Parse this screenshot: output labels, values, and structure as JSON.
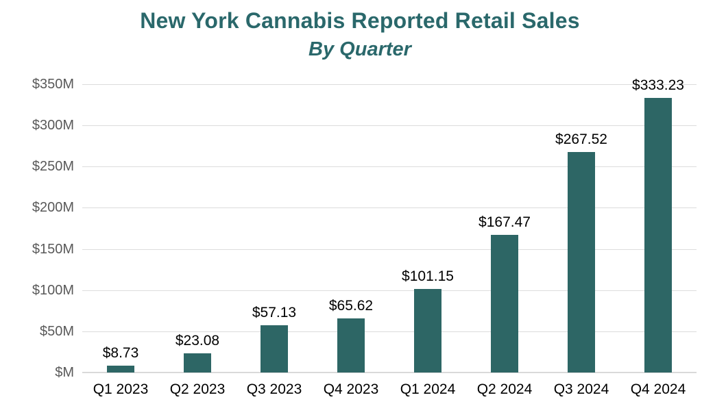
{
  "chart_data": {
    "type": "bar",
    "title": "New York Cannabis Reported Retail Sales",
    "subtitle": "By Quarter",
    "categories": [
      "Q1 2023",
      "Q2 2023",
      "Q3 2023",
      "Q4 2023",
      "Q1 2024",
      "Q2 2024",
      "Q3 2024",
      "Q4 2024"
    ],
    "values": [
      8.73,
      23.08,
      57.13,
      65.62,
      101.15,
      167.47,
      267.52,
      333.23
    ],
    "value_labels": [
      "$8.73",
      "$23.08",
      "$57.13",
      "$65.62",
      "$101.15",
      "$167.47",
      "$267.52",
      "$333.23"
    ],
    "y_ticks": [
      {
        "value": 0,
        "label": "$M"
      },
      {
        "value": 50,
        "label": "$50M"
      },
      {
        "value": 100,
        "label": "$100M"
      },
      {
        "value": 150,
        "label": "$150M"
      },
      {
        "value": 200,
        "label": "$200M"
      },
      {
        "value": 250,
        "label": "$250M"
      },
      {
        "value": 300,
        "label": "$300M"
      },
      {
        "value": 350,
        "label": "$350M"
      }
    ],
    "ylim": [
      0,
      350
    ],
    "xlabel": "",
    "ylabel": "",
    "legend": "none",
    "grid": "horizontal",
    "units": "USD millions",
    "colors": {
      "bar": "#2D6665",
      "title": "#2A686B",
      "subtitle": "#2A686B",
      "y_tick_label": "#595959",
      "x_tick_label": "#000000",
      "data_label": "#000000",
      "gridline": "#DCDCDC",
      "baseline": "#D9D9D9",
      "background": "#FFFFFF"
    }
  }
}
